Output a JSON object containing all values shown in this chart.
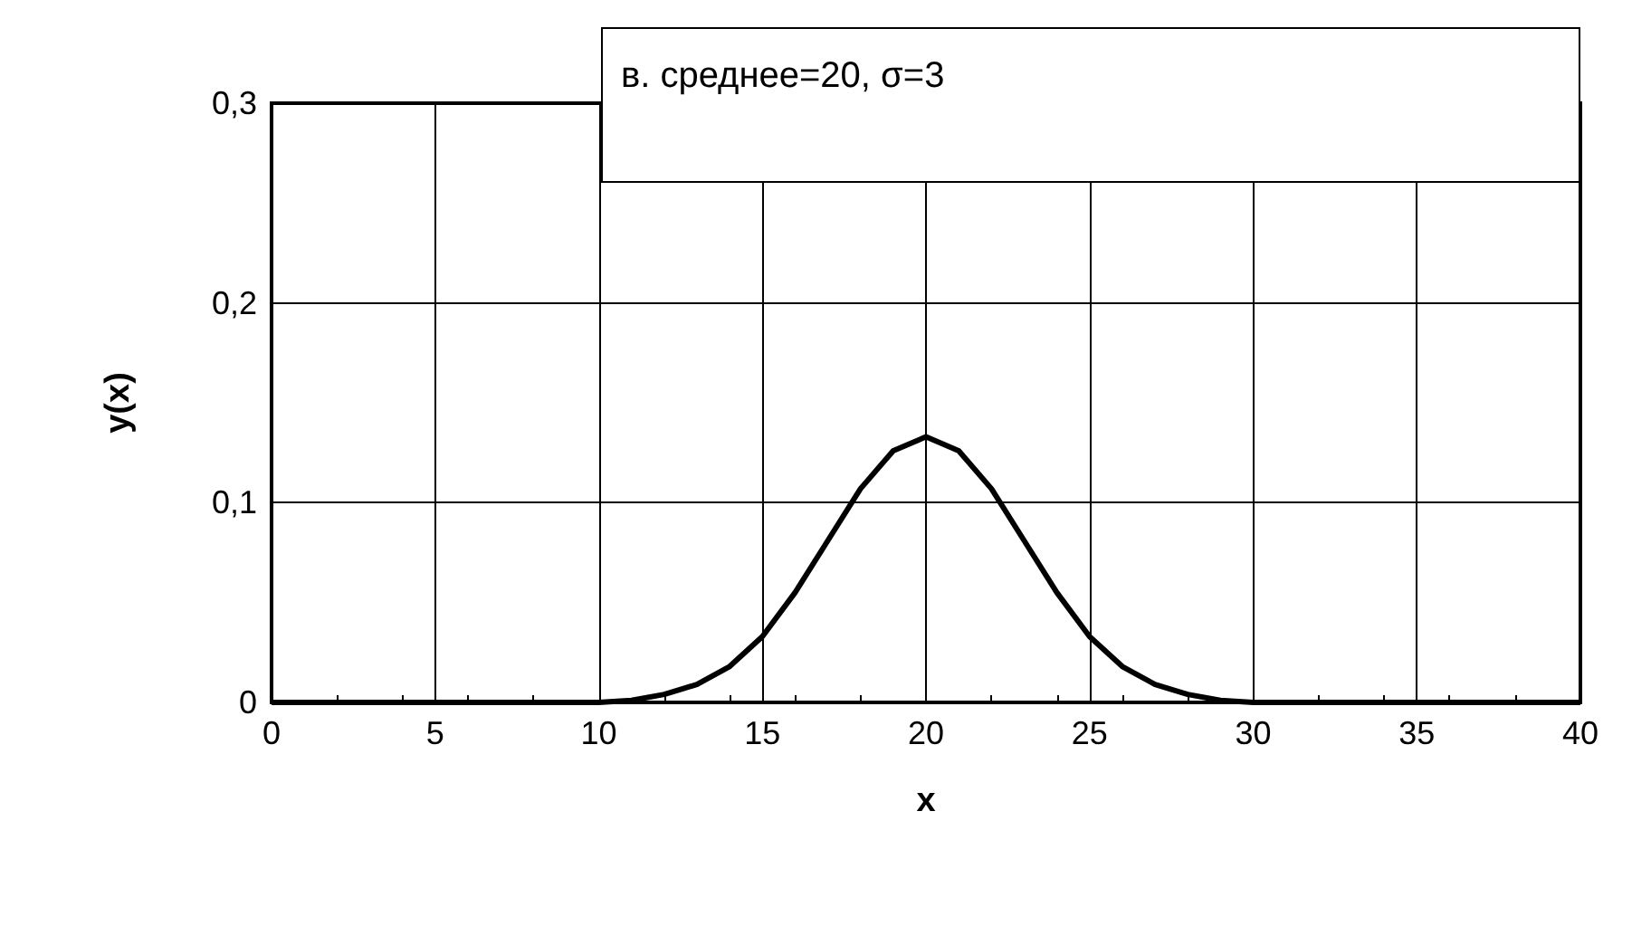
{
  "chart_data": {
    "type": "line",
    "xlabel": "x",
    "ylabel": "y(x)",
    "annotations": [
      "в. среднее=20, σ=3"
    ],
    "x": [
      0,
      1,
      2,
      3,
      4,
      5,
      6,
      7,
      8,
      9,
      10,
      11,
      12,
      13,
      14,
      15,
      16,
      17,
      18,
      19,
      20,
      21,
      22,
      23,
      24,
      25,
      26,
      27,
      28,
      29,
      30,
      31,
      32,
      33,
      34,
      35,
      36,
      37,
      38,
      39,
      40
    ],
    "series": [
      {
        "color": "#000000",
        "values": [
          0,
          0,
          0,
          0,
          0,
          0,
          0,
          0,
          0,
          0,
          0,
          0.001,
          0.004,
          0.009,
          0.018,
          0.033,
          0.055,
          0.081,
          0.107,
          0.126,
          0.133,
          0.126,
          0.107,
          0.081,
          0.055,
          0.033,
          0.018,
          0.009,
          0.004,
          0.001,
          0,
          0,
          0,
          0,
          0,
          0,
          0,
          0,
          0,
          0,
          0
        ]
      }
    ],
    "xlim": [
      0,
      40
    ],
    "xticks": [
      0,
      5,
      10,
      15,
      20,
      25,
      30,
      35,
      40
    ],
    "ylim": [
      0,
      0.3
    ],
    "yticks": [
      {
        "value": 0,
        "label": "0"
      },
      {
        "value": 0.1,
        "label": "0,1"
      },
      {
        "value": 0.2,
        "label": "0,2"
      },
      {
        "value": 0.3,
        "label": "0,3"
      }
    ],
    "grid": true,
    "marker": "none",
    "line_style": "solid"
  }
}
